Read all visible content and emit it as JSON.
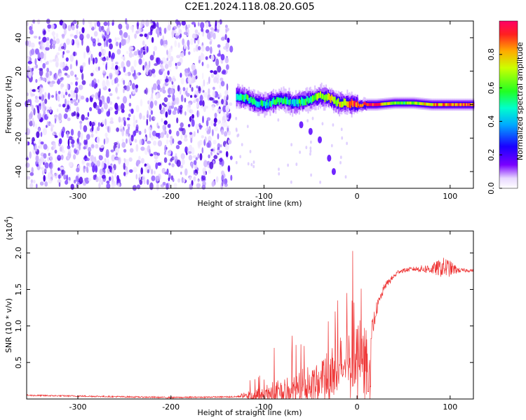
{
  "title": "C2E1.2024.118.08.20.G05",
  "chart_data": [
    {
      "type": "heatmap",
      "xlabel": "Height of straight line (km)",
      "ylabel": "Frequency (Hz)",
      "xlim": [
        -355,
        125
      ],
      "ylim": [
        -50,
        50
      ],
      "xticks": [
        "-300",
        "-200",
        "-100",
        "0",
        "100"
      ],
      "yticks": [
        "-40",
        "-20",
        "0",
        "20",
        "40"
      ],
      "colorbar": {
        "label": "Normalized spectral amplitude",
        "range": [
          0.0,
          1.0
        ],
        "ticks": [
          "0.0",
          "0.2",
          "0.4",
          "0.6",
          "0.8"
        ]
      },
      "noise_region_x": [
        -355,
        -135
      ],
      "signal_track": [
        {
          "x": -130,
          "freq": 5,
          "amp": 0.5
        },
        {
          "x": -120,
          "freq": 4,
          "amp": 0.55
        },
        {
          "x": -110,
          "freq": 1,
          "amp": 0.5
        },
        {
          "x": -100,
          "freq": 0,
          "amp": 0.45
        },
        {
          "x": -90,
          "freq": 2,
          "amp": 0.55
        },
        {
          "x": -80,
          "freq": 3,
          "amp": 0.5
        },
        {
          "x": -70,
          "freq": 1,
          "amp": 0.45
        },
        {
          "x": -60,
          "freq": 2,
          "amp": 0.55
        },
        {
          "x": -50,
          "freq": 3,
          "amp": 0.6
        },
        {
          "x": -40,
          "freq": 5,
          "amp": 0.7
        },
        {
          "x": -30,
          "freq": 4,
          "amp": 0.75
        },
        {
          "x": -20,
          "freq": 1,
          "amp": 0.7
        },
        {
          "x": -10,
          "freq": 1,
          "amp": 0.85
        },
        {
          "x": 0,
          "freq": 0,
          "amp": 0.9
        },
        {
          "x": 20,
          "freq": 0,
          "amp": 0.95
        },
        {
          "x": 40,
          "freq": 1,
          "amp": 0.6
        },
        {
          "x": 60,
          "freq": 1,
          "amp": 0.62
        },
        {
          "x": 80,
          "freq": 0,
          "amp": 0.8
        },
        {
          "x": 100,
          "freq": 0,
          "amp": 0.85
        },
        {
          "x": 125,
          "freq": 0,
          "amp": 0.9
        }
      ],
      "drifting_branch": [
        {
          "x": -60,
          "freq": -12
        },
        {
          "x": -50,
          "freq": -16
        },
        {
          "x": -40,
          "freq": -21
        },
        {
          "x": -30,
          "freq": -32
        },
        {
          "x": -25,
          "freq": -40
        }
      ]
    },
    {
      "type": "line",
      "xlabel": "Height of straight line (km)",
      "ylabel": "SNR (10 * v/v)",
      "yscale_label": "(x10",
      "yscale_exp": "4",
      "yscale_close": ")",
      "xlim": [
        -355,
        125
      ],
      "ylim": [
        0.0,
        2.3
      ],
      "xticks": [
        "-300",
        "-200",
        "-100",
        "0",
        "100"
      ],
      "yticks": [
        "0.5",
        "1.0",
        "1.5",
        "2.0"
      ],
      "color": "#ee3333",
      "envelope": [
        {
          "x": -355,
          "base": 0.05,
          "amp": 0.02
        },
        {
          "x": -300,
          "base": 0.04,
          "amp": 0.02
        },
        {
          "x": -200,
          "base": 0.02,
          "amp": 0.02
        },
        {
          "x": -130,
          "base": 0.03,
          "amp": 0.02
        },
        {
          "x": -110,
          "base": 0.08,
          "amp": 0.15
        },
        {
          "x": -90,
          "base": 0.12,
          "amp": 0.25
        },
        {
          "x": -70,
          "base": 0.18,
          "amp": 0.32
        },
        {
          "x": -50,
          "base": 0.25,
          "amp": 0.45
        },
        {
          "x": -35,
          "base": 0.4,
          "amp": 0.6
        },
        {
          "x": -20,
          "base": 0.55,
          "amp": 0.5
        },
        {
          "x": -5,
          "base": 0.7,
          "amp": 0.6
        },
        {
          "x": 5,
          "base": 0.8,
          "amp": 0.6
        },
        {
          "x": 12,
          "base": 0.6,
          "amp": 0.5
        },
        {
          "x": 20,
          "base": 1.2,
          "amp": 0.2
        },
        {
          "x": 30,
          "base": 1.55,
          "amp": 0.1
        },
        {
          "x": 45,
          "base": 1.75,
          "amp": 0.06
        },
        {
          "x": 60,
          "base": 1.78,
          "amp": 0.06
        },
        {
          "x": 80,
          "base": 1.78,
          "amp": 0.15
        },
        {
          "x": 95,
          "base": 1.8,
          "amp": 0.3
        },
        {
          "x": 110,
          "base": 1.76,
          "amp": 0.06
        },
        {
          "x": 125,
          "base": 1.76,
          "amp": 0.04
        }
      ]
    }
  ]
}
